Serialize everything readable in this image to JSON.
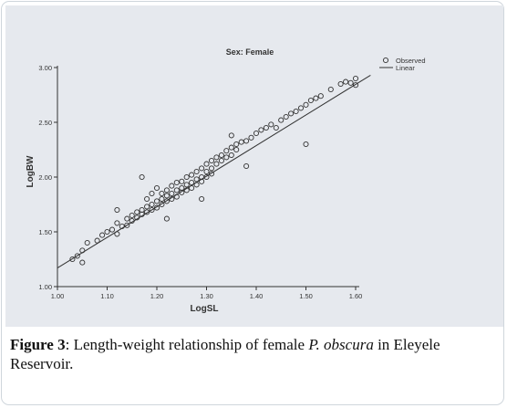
{
  "chart_data": {
    "type": "scatter",
    "title": "Sex: Female",
    "xlabel": "LogSL",
    "ylabel": "LogBW",
    "xlim": [
      1.0,
      1.6
    ],
    "ylim": [
      1.0,
      3.0
    ],
    "xticks": [
      "1.00",
      "1.10",
      "1.20",
      "1.30",
      "1.40",
      "1.50",
      "1.60"
    ],
    "yticks": [
      "1.00",
      "1.50",
      "2.00",
      "2.50",
      "3.00"
    ],
    "legend": {
      "position": "top-right",
      "entries": [
        "Observed",
        "Linear"
      ]
    },
    "fit_line": {
      "x": [
        1.0,
        1.63
      ],
      "y": [
        1.17,
        2.93
      ]
    },
    "series": [
      {
        "name": "Observed",
        "x": [
          1.03,
          1.04,
          1.05,
          1.05,
          1.06,
          1.08,
          1.09,
          1.1,
          1.11,
          1.12,
          1.12,
          1.13,
          1.14,
          1.14,
          1.15,
          1.15,
          1.16,
          1.16,
          1.17,
          1.17,
          1.18,
          1.18,
          1.18,
          1.19,
          1.19,
          1.19,
          1.2,
          1.2,
          1.2,
          1.21,
          1.21,
          1.21,
          1.22,
          1.22,
          1.22,
          1.23,
          1.23,
          1.23,
          1.24,
          1.24,
          1.24,
          1.25,
          1.25,
          1.25,
          1.26,
          1.26,
          1.26,
          1.27,
          1.27,
          1.27,
          1.28,
          1.28,
          1.28,
          1.29,
          1.29,
          1.29,
          1.3,
          1.3,
          1.3,
          1.31,
          1.31,
          1.31,
          1.32,
          1.32,
          1.33,
          1.33,
          1.34,
          1.34,
          1.35,
          1.35,
          1.36,
          1.36,
          1.37,
          1.38,
          1.39,
          1.4,
          1.41,
          1.42,
          1.43,
          1.44,
          1.45,
          1.46,
          1.47,
          1.48,
          1.49,
          1.5,
          1.51,
          1.52,
          1.53,
          1.55,
          1.57,
          1.58,
          1.59,
          1.6,
          1.6,
          1.17,
          1.22,
          1.29,
          1.35,
          1.5,
          1.38,
          1.12
        ],
        "y": [
          1.25,
          1.28,
          1.33,
          1.22,
          1.4,
          1.42,
          1.47,
          1.5,
          1.52,
          1.58,
          1.48,
          1.55,
          1.62,
          1.56,
          1.65,
          1.6,
          1.68,
          1.63,
          1.7,
          1.66,
          1.73,
          1.68,
          1.8,
          1.75,
          1.7,
          1.85,
          1.78,
          1.72,
          1.9,
          1.8,
          1.75,
          1.85,
          1.83,
          1.78,
          1.88,
          1.85,
          1.8,
          1.92,
          1.88,
          1.82,
          1.95,
          1.9,
          1.86,
          1.96,
          1.93,
          1.88,
          2.0,
          1.95,
          1.9,
          2.02,
          1.98,
          1.93,
          2.05,
          2.0,
          1.96,
          2.08,
          2.05,
          2.0,
          2.12,
          2.08,
          2.03,
          2.15,
          2.12,
          2.18,
          2.15,
          2.2,
          2.18,
          2.24,
          2.2,
          2.27,
          2.25,
          2.3,
          2.32,
          2.33,
          2.36,
          2.4,
          2.43,
          2.45,
          2.48,
          2.45,
          2.52,
          2.55,
          2.58,
          2.6,
          2.63,
          2.66,
          2.7,
          2.72,
          2.74,
          2.8,
          2.85,
          2.87,
          2.86,
          2.84,
          2.9,
          2.0,
          1.62,
          1.8,
          2.38,
          2.3,
          2.1,
          1.7
        ]
      }
    ]
  },
  "caption": {
    "label": "Figure 3",
    "text_before": ": Length-weight relationship of female ",
    "species": "P. obscura",
    "text_after": " in Eleyele Reservoir."
  },
  "colors": {
    "panel_bg": "#e6e9ee",
    "marker": "#333333",
    "line": "#333333",
    "frame": "#cfd6dc"
  }
}
